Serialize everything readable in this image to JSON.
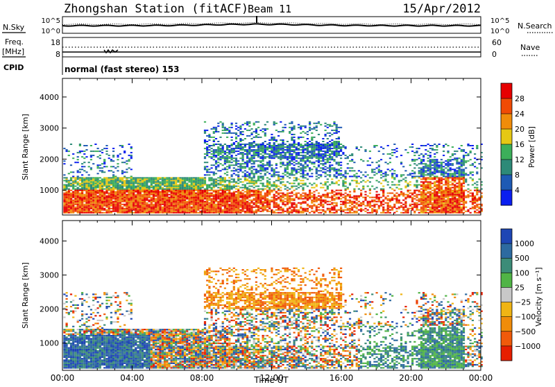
{
  "header": {
    "title": "Zhongshan Station (fitACF)",
    "beam": "Beam 11",
    "date": "15/Apr/2012"
  },
  "aux_panels": {
    "nsky_label": "N.Sky",
    "nsearch_label": "N.Search",
    "noise_ticks_left": [
      "10^5",
      "10^0"
    ],
    "noise_ticks_right": [
      "10^5",
      "10^0"
    ],
    "freq_label_1": "Freq.",
    "freq_label_2": "[MHz]",
    "freq_ticks": [
      "18",
      "8"
    ],
    "nave_label": "Nave",
    "nave_ticks": [
      "60",
      "0"
    ],
    "cpid_label": "CPID",
    "cpid_text": "normal (fast stereo) 153"
  },
  "chart_data": [
    {
      "type": "heatmap",
      "panel": "power",
      "ylabel": "Slant Range [km]",
      "yticks": [
        "1000",
        "2000",
        "3000",
        "4000"
      ],
      "ylim": [
        200,
        4600
      ],
      "xlim_hours": [
        0,
        24
      ],
      "colorbar": {
        "label": "Power [dB]",
        "ticks": [
          "4",
          "8",
          "12",
          "16",
          "20",
          "24",
          "28"
        ],
        "colors": [
          "#0a1ef0",
          "#1e5ab4",
          "#2d8a78",
          "#3caf5a",
          "#e6c814",
          "#f08c0a",
          "#f04b05",
          "#e60000"
        ]
      }
    },
    {
      "type": "heatmap",
      "panel": "velocity",
      "ylabel": "Slant Range [km]",
      "yticks": [
        "1000",
        "2000",
        "3000",
        "4000"
      ],
      "ylim": [
        200,
        4600
      ],
      "xlim_hours": [
        0,
        24
      ],
      "xticks": [
        "00:00",
        "04:00",
        "08:00",
        "12:00",
        "16:00",
        "20:00",
        "00:00"
      ],
      "xlabel": "Time UT",
      "colorbar": {
        "label": "Velocity [m s⁻¹]",
        "ticks": [
          "1000",
          "500",
          "100",
          "25",
          "−25",
          "−100",
          "−500",
          "−1000"
        ],
        "colors": [
          "#1e46b4",
          "#2d6aa0",
          "#3c8c78",
          "#50b446",
          "#c8c8c8",
          "#f0b414",
          "#f08c0a",
          "#f05a0a",
          "#e61e00"
        ]
      }
    }
  ]
}
